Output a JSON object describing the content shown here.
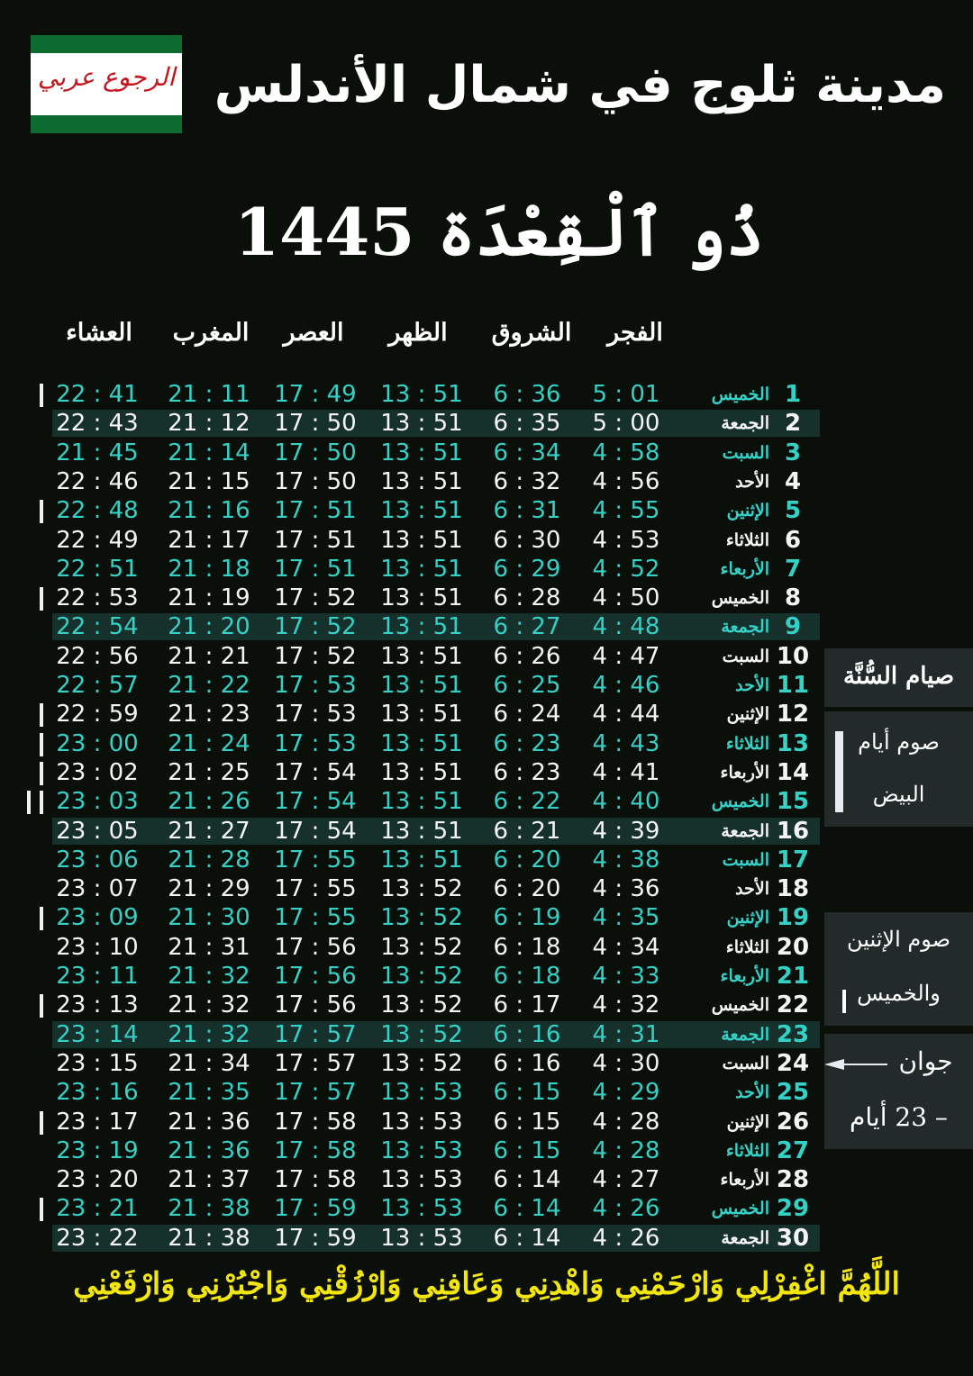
{
  "logo": {
    "text": "الرجوع عربي",
    "colors": {
      "green": "#0d6b2f",
      "red": "#c4161c"
    }
  },
  "title": "مدينة ثلوج في شمال الأندلس",
  "month": "ذُو ٱلْقِعْدَة 1445",
  "headers": {
    "fajr": "الفجر",
    "shuruq": "الشروق",
    "dhuhr": "الظهر",
    "asr": "العصر",
    "maghrib": "المغرب",
    "isha": "العشاء"
  },
  "colors": {
    "odd_row": "#35d0c6",
    "even_row": "#f4f4f4",
    "friday_bg": "#16302c",
    "footer": "#f2e60c"
  },
  "rows": [
    {
      "day": "1",
      "name": "الخميس",
      "fajr": "5 : 01",
      "shuruq": "6 : 36",
      "dhuhr": "13 : 51",
      "asr": "17 : 49",
      "maghrib": "21 : 11",
      "isha": "22 : 41"
    },
    {
      "day": "2",
      "name": "الجمعة",
      "fajr": "5 : 00",
      "shuruq": "6 : 35",
      "dhuhr": "13 : 51",
      "asr": "17 : 50",
      "maghrib": "21 : 12",
      "isha": "22 : 43"
    },
    {
      "day": "3",
      "name": "السبت",
      "fajr": "4 : 58",
      "shuruq": "6 : 34",
      "dhuhr": "13 : 51",
      "asr": "17 : 50",
      "maghrib": "21 : 14",
      "isha": "21 : 45"
    },
    {
      "day": "4",
      "name": "الأحد",
      "fajr": "4 : 56",
      "shuruq": "6 : 32",
      "dhuhr": "13 : 51",
      "asr": "17 : 50",
      "maghrib": "21 : 15",
      "isha": "22 : 46"
    },
    {
      "day": "5",
      "name": "الإثنين",
      "fajr": "4 : 55",
      "shuruq": "6 : 31",
      "dhuhr": "13 : 51",
      "asr": "17 : 51",
      "maghrib": "21 : 16",
      "isha": "22 : 48"
    },
    {
      "day": "6",
      "name": "الثلاثاء",
      "fajr": "4 : 53",
      "shuruq": "6 : 30",
      "dhuhr": "13 : 51",
      "asr": "17 : 51",
      "maghrib": "21 : 17",
      "isha": "22 : 49"
    },
    {
      "day": "7",
      "name": "الأربعاء",
      "fajr": "4 : 52",
      "shuruq": "6 : 29",
      "dhuhr": "13 : 51",
      "asr": "17 : 51",
      "maghrib": "21 : 18",
      "isha": "22 : 51"
    },
    {
      "day": "8",
      "name": "الخميس",
      "fajr": "4 : 50",
      "shuruq": "6 : 28",
      "dhuhr": "13 : 51",
      "asr": "17 : 52",
      "maghrib": "21 : 19",
      "isha": "22 : 53"
    },
    {
      "day": "9",
      "name": "الجمعة",
      "fajr": "4 : 48",
      "shuruq": "6 : 27",
      "dhuhr": "13 : 51",
      "asr": "17 : 52",
      "maghrib": "21 : 20",
      "isha": "22 : 54"
    },
    {
      "day": "10",
      "name": "السبت",
      "fajr": "4 : 47",
      "shuruq": "6 : 26",
      "dhuhr": "13 : 51",
      "asr": "17 : 52",
      "maghrib": "21 : 21",
      "isha": "22 : 56"
    },
    {
      "day": "11",
      "name": "الأحد",
      "fajr": "4 : 46",
      "shuruq": "6 : 25",
      "dhuhr": "13 : 51",
      "asr": "17 : 53",
      "maghrib": "21 : 22",
      "isha": "22 : 57"
    },
    {
      "day": "12",
      "name": "الإثنين",
      "fajr": "4 : 44",
      "shuruq": "6 : 24",
      "dhuhr": "13 : 51",
      "asr": "17 : 53",
      "maghrib": "21 : 23",
      "isha": "22 : 59"
    },
    {
      "day": "13",
      "name": "الثلاثاء",
      "fajr": "4 : 43",
      "shuruq": "6 : 23",
      "dhuhr": "13 : 51",
      "asr": "17 : 53",
      "maghrib": "21 : 24",
      "isha": "23 : 00"
    },
    {
      "day": "14",
      "name": "الأربعاء",
      "fajr": "4 : 41",
      "shuruq": "6 : 23",
      "dhuhr": "13 : 51",
      "asr": "17 : 54",
      "maghrib": "21 : 25",
      "isha": "23 : 02"
    },
    {
      "day": "15",
      "name": "الخميس",
      "fajr": "4 : 40",
      "shuruq": "6 : 22",
      "dhuhr": "13 : 51",
      "asr": "17 : 54",
      "maghrib": "21 : 26",
      "isha": "23 : 03"
    },
    {
      "day": "16",
      "name": "الجمعة",
      "fajr": "4 : 39",
      "shuruq": "6 : 21",
      "dhuhr": "13 : 51",
      "asr": "17 : 54",
      "maghrib": "21 : 27",
      "isha": "23 : 05"
    },
    {
      "day": "17",
      "name": "السبت",
      "fajr": "4 : 38",
      "shuruq": "6 : 20",
      "dhuhr": "13 : 51",
      "asr": "17 : 55",
      "maghrib": "21 : 28",
      "isha": "23 : 06"
    },
    {
      "day": "18",
      "name": "الأحد",
      "fajr": "4 : 36",
      "shuruq": "6 : 20",
      "dhuhr": "13 : 52",
      "asr": "17 : 55",
      "maghrib": "21 : 29",
      "isha": "23 : 07"
    },
    {
      "day": "19",
      "name": "الإثنين",
      "fajr": "4 : 35",
      "shuruq": "6 : 19",
      "dhuhr": "13 : 52",
      "asr": "17 : 55",
      "maghrib": "21 : 30",
      "isha": "23 : 09"
    },
    {
      "day": "20",
      "name": "الثلاثاء",
      "fajr": "4 : 34",
      "shuruq": "6 : 18",
      "dhuhr": "13 : 52",
      "asr": "17 : 56",
      "maghrib": "21 : 31",
      "isha": "23 : 10"
    },
    {
      "day": "21",
      "name": "الأربعاء",
      "fajr": "4 : 33",
      "shuruq": "6 : 18",
      "dhuhr": "13 : 52",
      "asr": "17 : 56",
      "maghrib": "21 : 32",
      "isha": "23 : 11"
    },
    {
      "day": "22",
      "name": "الخميس",
      "fajr": "4 : 32",
      "shuruq": "6 : 17",
      "dhuhr": "13 : 52",
      "asr": "17 : 56",
      "maghrib": "21 : 32",
      "isha": "23 : 13"
    },
    {
      "day": "23",
      "name": "الجمعة",
      "fajr": "4 : 31",
      "shuruq": "6 : 16",
      "dhuhr": "13 : 52",
      "asr": "17 : 57",
      "maghrib": "21 : 32",
      "isha": "23 : 14"
    },
    {
      "day": "24",
      "name": "السبت",
      "fajr": "4 : 30",
      "shuruq": "6 : 16",
      "dhuhr": "13 : 52",
      "asr": "17 : 57",
      "maghrib": "21 : 34",
      "isha": "23 : 15"
    },
    {
      "day": "25",
      "name": "الأحد",
      "fajr": "4 : 29",
      "shuruq": "6 : 15",
      "dhuhr": "13 : 53",
      "asr": "17 : 57",
      "maghrib": "21 : 35",
      "isha": "23 : 16"
    },
    {
      "day": "26",
      "name": "الإثنين",
      "fajr": "4 : 28",
      "shuruq": "6 : 15",
      "dhuhr": "13 : 53",
      "asr": "17 : 58",
      "maghrib": "21 : 36",
      "isha": "23 : 17"
    },
    {
      "day": "27",
      "name": "الثلاثاء",
      "fajr": "4 : 28",
      "shuruq": "6 : 15",
      "dhuhr": "13 : 53",
      "asr": "17 : 58",
      "maghrib": "21 : 36",
      "isha": "23 : 19"
    },
    {
      "day": "28",
      "name": "الأربعاء",
      "fajr": "4 : 27",
      "shuruq": "6 : 14",
      "dhuhr": "13 : 53",
      "asr": "17 : 58",
      "maghrib": "21 : 37",
      "isha": "23 : 20"
    },
    {
      "day": "29",
      "name": "الخميس",
      "fajr": "4 : 26",
      "shuruq": "6 : 14",
      "dhuhr": "13 : 53",
      "asr": "17 : 59",
      "maghrib": "21 : 38",
      "isha": "23 : 21"
    },
    {
      "day": "30",
      "name": "الجمعة",
      "fajr": "4 : 26",
      "shuruq": "6 : 14",
      "dhuhr": "13 : 53",
      "asr": "17 : 59",
      "maghrib": "21 : 38",
      "isha": "23 : 22"
    }
  ],
  "side": {
    "heading": "صيام السُّنَّة",
    "white_days_1": "صوم أيام",
    "white_days_2": "البيض",
    "mon_thu_1": "صوم الإثنين",
    "mon_thu_2": "والخميس",
    "june_1": "جوان",
    "june_2": "– 23 أيام",
    "arrow_icon": "arrow-left-icon"
  },
  "footer": "اللَّهُمَّ اغْفِرْلِي وَارْحَمْنِي وَاهْدِنِي وَعَافِنِي وَارْزُقْنِي وَاجْبُرْنِي وَارْفَعْنِي"
}
